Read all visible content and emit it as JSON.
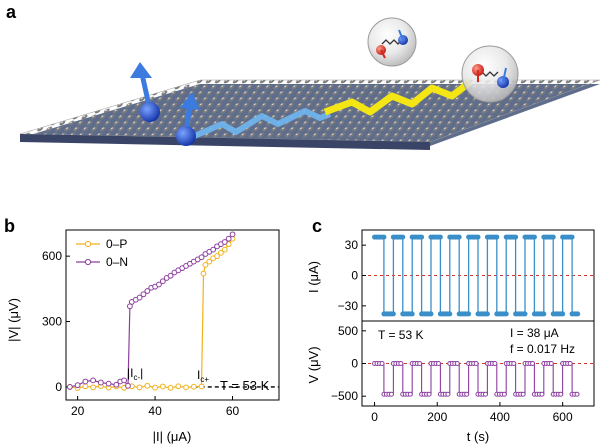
{
  "panels": {
    "a": "a",
    "b": "b",
    "c": "c"
  },
  "colors": {
    "p_series": "#f2b21b",
    "n_series": "#8c3fa0",
    "current": "#3b8fc9",
    "voltage": "#8c3fa0",
    "ref_line": "#d0342c",
    "substrate": "#8a8a8a",
    "spin_blue": "#1f4fd6",
    "ribbon": "#f4e515"
  },
  "panel_b": {
    "legend": [
      "0–P",
      "0–N"
    ],
    "y_axis_label": "|V| (μV)",
    "x_axis_label": "|I| (μA)",
    "y_ticks": [
      "0",
      "300",
      "600"
    ],
    "x_ticks": [
      "20",
      "40",
      "60"
    ],
    "ic_minus": "|I",
    "ic_minus_sub": "c-",
    "ic_minus_close": "|",
    "ic_plus": "I",
    "ic_plus_sub": "c+",
    "temperature": "T = 53 K"
  },
  "panel_c": {
    "top_y_label": "I (μA)",
    "top_y_ticks": [
      "30",
      "0",
      "−30"
    ],
    "bottom_y_label": "V (μV)",
    "bottom_y_ticks": [
      "500",
      "0",
      "−500"
    ],
    "x_ticks": [
      "0",
      "200",
      "400",
      "600"
    ],
    "x_axis_label": "t (s)",
    "temperature": "T = 53 K",
    "current": "I = 38 μA",
    "frequency": "f = 0.017 Hz"
  },
  "chart_data": [
    {
      "type": "line",
      "panel": "b",
      "xlabel": "|I| (μA)",
      "ylabel": "|V| (μV)",
      "xlim": [
        17,
        72
      ],
      "ylim": [
        -60,
        720
      ],
      "series": [
        {
          "name": "0–P",
          "x": [
            18,
            20,
            22,
            24,
            26,
            28,
            30,
            32,
            34,
            36,
            38,
            40,
            42,
            44,
            46,
            48,
            50,
            52,
            52.5,
            53,
            54,
            55,
            56,
            57,
            58,
            59,
            60
          ],
          "values": [
            0,
            -5,
            3,
            -2,
            4,
            -3,
            2,
            -4,
            3,
            -2,
            5,
            -3,
            2,
            -4,
            3,
            -2,
            1,
            2,
            520,
            560,
            575,
            590,
            600,
            615,
            630,
            655,
            680
          ]
        },
        {
          "name": "0–N",
          "x": [
            18,
            20,
            22,
            24,
            26,
            28,
            30,
            31,
            32,
            33,
            33.5,
            34,
            35,
            36,
            37,
            38,
            39,
            40,
            41,
            42,
            43,
            44,
            45,
            46,
            47,
            48,
            49,
            50,
            51,
            52,
            53,
            54,
            55,
            56,
            57,
            58,
            59,
            60
          ],
          "values": [
            0,
            8,
            25,
            30,
            20,
            15,
            10,
            25,
            30,
            5,
            370,
            390,
            400,
            410,
            425,
            440,
            455,
            460,
            470,
            485,
            500,
            510,
            525,
            535,
            545,
            555,
            565,
            575,
            585,
            595,
            610,
            620,
            630,
            645,
            655,
            665,
            680,
            700
          ]
        }
      ]
    },
    {
      "type": "line",
      "panel": "c-top",
      "xlabel": "t (s)",
      "ylabel": "I (μA)",
      "xlim": [
        -40,
        700
      ],
      "ylim": [
        -45,
        45
      ],
      "series": [
        {
          "name": "I",
          "period_s": 60,
          "high": 38,
          "low": -38,
          "t_start": 0,
          "t_end": 650
        }
      ]
    },
    {
      "type": "scatter",
      "panel": "c-bottom",
      "xlabel": "t (s)",
      "ylabel": "V (μV)",
      "xlim": [
        -40,
        700
      ],
      "ylim": [
        -650,
        650
      ],
      "series": [
        {
          "name": "V",
          "period_s": 60,
          "high": 0,
          "low": -470,
          "t_start": 0,
          "t_end": 650
        }
      ]
    }
  ]
}
